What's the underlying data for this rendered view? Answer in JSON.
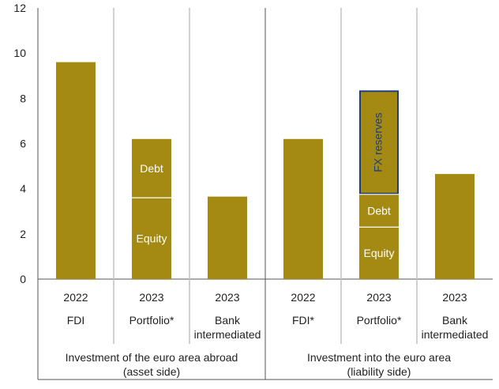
{
  "chart_data": {
    "type": "bar",
    "stacked": true,
    "ylim": [
      0,
      12
    ],
    "yticks": [
      0,
      2,
      4,
      6,
      8,
      10,
      12
    ],
    "grid": false,
    "bar_color": "#a48a13",
    "highlight_border_color": "#1f3d7a",
    "categories": [
      {
        "year": "2022",
        "label": "FDI",
        "group": 0,
        "segments": [
          {
            "name": "",
            "value": 9.6
          }
        ]
      },
      {
        "year": "2023",
        "label": "Portfolio*",
        "group": 0,
        "segments": [
          {
            "name": "Equity",
            "value": 3.6
          },
          {
            "name": "Debt",
            "value": 2.6
          }
        ]
      },
      {
        "year": "2023",
        "label": "Bank intermediated",
        "group": 0,
        "segments": [
          {
            "name": "",
            "value": 3.65
          }
        ]
      },
      {
        "year": "2022",
        "label": "FDI*",
        "group": 1,
        "segments": [
          {
            "name": "",
            "value": 6.2
          }
        ]
      },
      {
        "year": "2023",
        "label": "Portfolio*",
        "group": 1,
        "segments": [
          {
            "name": "Equity",
            "value": 2.3
          },
          {
            "name": "Debt",
            "value": 1.45
          },
          {
            "name": "FX reserves",
            "value": 4.6,
            "highlight": true
          }
        ]
      },
      {
        "year": "2023",
        "label": "Bank intermediated",
        "group": 1,
        "segments": [
          {
            "name": "",
            "value": 4.65
          }
        ]
      }
    ],
    "groups": [
      {
        "label": "Investment of the euro area abroad",
        "sublabel": "(asset side)"
      },
      {
        "label": "Investment into the euro area",
        "sublabel": "(liability side)"
      }
    ]
  }
}
